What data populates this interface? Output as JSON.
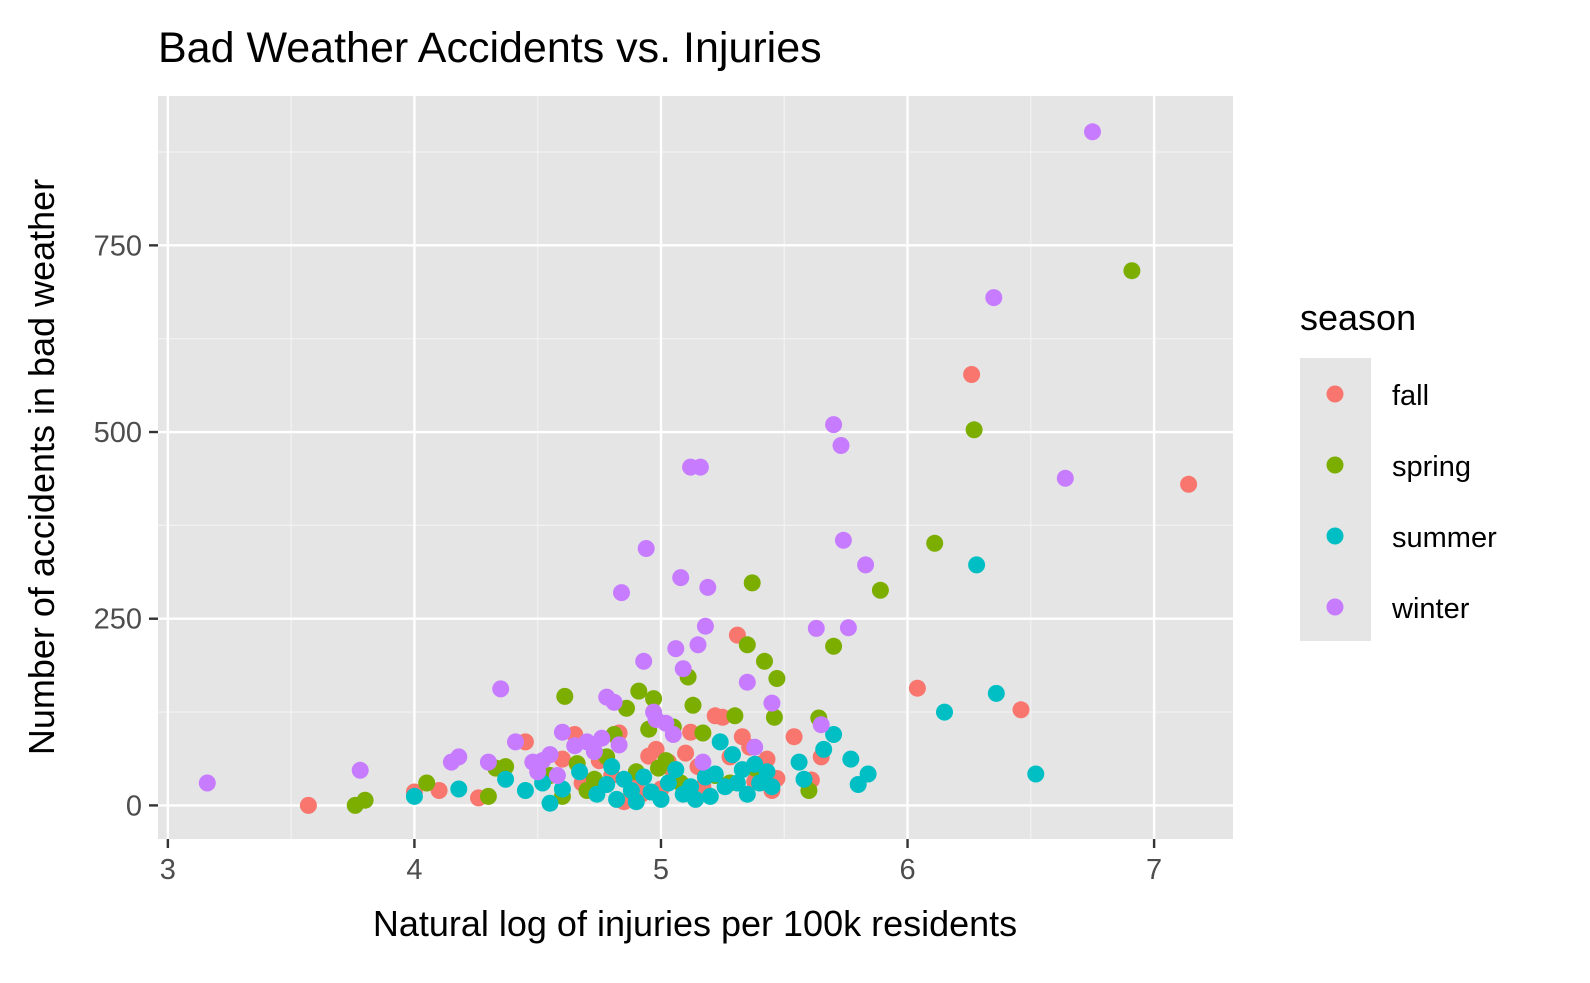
{
  "chart_data": {
    "type": "scatter",
    "title": "Bad Weather Accidents vs. Injuries",
    "xlabel": "Natural log of injuries per 100k residents",
    "ylabel": "Number of accidents in bad weather",
    "xlim": [
      2.96,
      7.32
    ],
    "ylim": [
      -45,
      950
    ],
    "x_ticks": [
      3,
      4,
      5,
      6,
      7
    ],
    "x_tick_labels": [
      "3",
      "4",
      "5",
      "6",
      "7"
    ],
    "y_ticks": [
      0,
      250,
      500,
      750
    ],
    "y_tick_labels": [
      "0",
      "250",
      "500",
      "750"
    ],
    "grid": true,
    "legend_position": "right",
    "legend": {
      "title": "season",
      "entries": [
        {
          "label": "fall",
          "color": "#F8766D"
        },
        {
          "label": "spring",
          "color": "#7CAE00"
        },
        {
          "label": "summer",
          "color": "#00BFC4"
        },
        {
          "label": "winter",
          "color": "#C77CFF"
        }
      ]
    },
    "series": [
      {
        "name": "fall",
        "color": "#F8766D",
        "points": [
          [
            3.57,
            0
          ],
          [
            4.0,
            18
          ],
          [
            4.1,
            20
          ],
          [
            4.26,
            10
          ],
          [
            4.45,
            85
          ],
          [
            4.6,
            62
          ],
          [
            4.65,
            95
          ],
          [
            4.68,
            30
          ],
          [
            4.75,
            60
          ],
          [
            4.8,
            40
          ],
          [
            4.83,
            97
          ],
          [
            4.85,
            5
          ],
          [
            4.9,
            28
          ],
          [
            4.92,
            15
          ],
          [
            4.95,
            66
          ],
          [
            4.98,
            75
          ],
          [
            5.0,
            22
          ],
          [
            5.03,
            58
          ],
          [
            5.05,
            45
          ],
          [
            5.1,
            70
          ],
          [
            5.12,
            98
          ],
          [
            5.15,
            52
          ],
          [
            5.17,
            25
          ],
          [
            5.22,
            120
          ],
          [
            5.25,
            118
          ],
          [
            5.28,
            65
          ],
          [
            5.31,
            228
          ],
          [
            5.33,
            92
          ],
          [
            5.36,
            78
          ],
          [
            5.38,
            32
          ],
          [
            5.4,
            55
          ],
          [
            5.43,
            62
          ],
          [
            5.45,
            20
          ],
          [
            5.47,
            36
          ],
          [
            5.54,
            92
          ],
          [
            5.61,
            34
          ],
          [
            5.65,
            65
          ],
          [
            6.04,
            157
          ],
          [
            6.26,
            577
          ],
          [
            6.46,
            128
          ],
          [
            7.14,
            430
          ]
        ]
      },
      {
        "name": "spring",
        "color": "#7CAE00",
        "points": [
          [
            3.76,
            0
          ],
          [
            3.8,
            7
          ],
          [
            4.05,
            30
          ],
          [
            4.3,
            12
          ],
          [
            4.33,
            50
          ],
          [
            4.37,
            52
          ],
          [
            4.55,
            40
          ],
          [
            4.6,
            12
          ],
          [
            4.61,
            146
          ],
          [
            4.66,
            56
          ],
          [
            4.7,
            20
          ],
          [
            4.73,
            35
          ],
          [
            4.78,
            65
          ],
          [
            4.81,
            95
          ],
          [
            4.86,
            130
          ],
          [
            4.9,
            45
          ],
          [
            4.91,
            153
          ],
          [
            4.95,
            102
          ],
          [
            4.97,
            143
          ],
          [
            4.99,
            50
          ],
          [
            5.02,
            60
          ],
          [
            5.05,
            105
          ],
          [
            5.08,
            30
          ],
          [
            5.11,
            172
          ],
          [
            5.13,
            134
          ],
          [
            5.17,
            97
          ],
          [
            5.22,
            40
          ],
          [
            5.28,
            30
          ],
          [
            5.3,
            120
          ],
          [
            5.35,
            215
          ],
          [
            5.37,
            298
          ],
          [
            5.38,
            50
          ],
          [
            5.42,
            193
          ],
          [
            5.46,
            118
          ],
          [
            5.47,
            170
          ],
          [
            5.6,
            20
          ],
          [
            5.64,
            117
          ],
          [
            5.7,
            213
          ],
          [
            5.89,
            288
          ],
          [
            6.11,
            351
          ],
          [
            6.27,
            503
          ],
          [
            6.91,
            716
          ]
        ]
      },
      {
        "name": "summer",
        "color": "#00BFC4",
        "points": [
          [
            4.0,
            12
          ],
          [
            4.18,
            22
          ],
          [
            4.37,
            35
          ],
          [
            4.45,
            20
          ],
          [
            4.52,
            30
          ],
          [
            4.55,
            3
          ],
          [
            4.6,
            22
          ],
          [
            4.67,
            45
          ],
          [
            4.74,
            15
          ],
          [
            4.78,
            28
          ],
          [
            4.8,
            52
          ],
          [
            4.82,
            8
          ],
          [
            4.85,
            35
          ],
          [
            4.88,
            20
          ],
          [
            4.9,
            5
          ],
          [
            4.93,
            38
          ],
          [
            4.96,
            18
          ],
          [
            5.0,
            8
          ],
          [
            5.03,
            30
          ],
          [
            5.06,
            48
          ],
          [
            5.09,
            15
          ],
          [
            5.12,
            25
          ],
          [
            5.14,
            8
          ],
          [
            5.18,
            38
          ],
          [
            5.2,
            12
          ],
          [
            5.22,
            42
          ],
          [
            5.24,
            85
          ],
          [
            5.26,
            25
          ],
          [
            5.29,
            68
          ],
          [
            5.31,
            30
          ],
          [
            5.33,
            48
          ],
          [
            5.35,
            15
          ],
          [
            5.38,
            55
          ],
          [
            5.4,
            30
          ],
          [
            5.43,
            45
          ],
          [
            5.45,
            25
          ],
          [
            5.56,
            58
          ],
          [
            5.58,
            35
          ],
          [
            5.66,
            75
          ],
          [
            5.7,
            95
          ],
          [
            5.77,
            62
          ],
          [
            5.8,
            28
          ],
          [
            5.84,
            42
          ],
          [
            6.15,
            125
          ],
          [
            6.28,
            322
          ],
          [
            6.36,
            150
          ],
          [
            6.52,
            42
          ]
        ]
      },
      {
        "name": "winter",
        "color": "#C77CFF",
        "points": [
          [
            3.16,
            30
          ],
          [
            3.78,
            47
          ],
          [
            4.15,
            58
          ],
          [
            4.18,
            65
          ],
          [
            4.3,
            58
          ],
          [
            4.35,
            156
          ],
          [
            4.41,
            85
          ],
          [
            4.48,
            58
          ],
          [
            4.5,
            45
          ],
          [
            4.52,
            60
          ],
          [
            4.55,
            68
          ],
          [
            4.58,
            40
          ],
          [
            4.6,
            98
          ],
          [
            4.65,
            80
          ],
          [
            4.7,
            85
          ],
          [
            4.73,
            72
          ],
          [
            4.76,
            90
          ],
          [
            4.78,
            145
          ],
          [
            4.81,
            138
          ],
          [
            4.83,
            81
          ],
          [
            4.84,
            285
          ],
          [
            4.93,
            193
          ],
          [
            4.94,
            344
          ],
          [
            4.97,
            125
          ],
          [
            4.98,
            115
          ],
          [
            5.02,
            110
          ],
          [
            5.05,
            95
          ],
          [
            5.06,
            210
          ],
          [
            5.08,
            305
          ],
          [
            5.09,
            183
          ],
          [
            5.12,
            453
          ],
          [
            5.15,
            215
          ],
          [
            5.16,
            453
          ],
          [
            5.17,
            58
          ],
          [
            5.18,
            240
          ],
          [
            5.19,
            292
          ],
          [
            5.35,
            165
          ],
          [
            5.38,
            78
          ],
          [
            5.45,
            137
          ],
          [
            5.63,
            237
          ],
          [
            5.65,
            108
          ],
          [
            5.7,
            510
          ],
          [
            5.73,
            482
          ],
          [
            5.74,
            355
          ],
          [
            5.76,
            238
          ],
          [
            5.83,
            322
          ],
          [
            6.35,
            680
          ],
          [
            6.64,
            438
          ],
          [
            6.75,
            902
          ]
        ]
      }
    ]
  }
}
